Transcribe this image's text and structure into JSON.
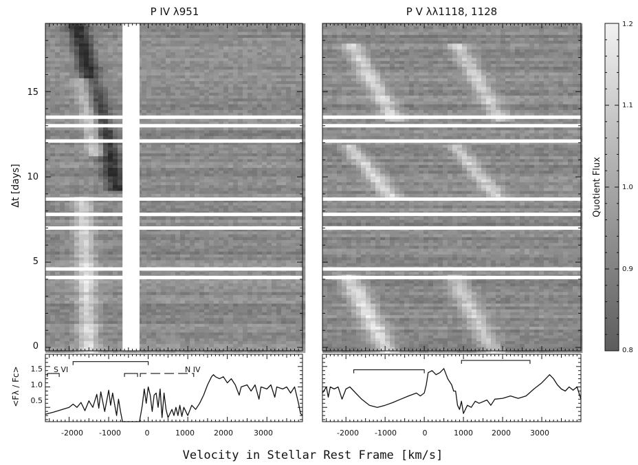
{
  "chart_data": [
    {
      "type": "heatmap",
      "title": "P IV λ951",
      "ylabel": "Δt [days]",
      "yticks": [
        "0",
        "5",
        "10",
        "15"
      ],
      "ylim": [
        -0.2,
        19
      ],
      "xlim": [
        -2600,
        3900
      ],
      "gap_band_kms": [
        -650,
        -220
      ],
      "white_rows_days": [
        4.1,
        4.6,
        7.0,
        7.8,
        8.7,
        12.1,
        13.0,
        13.5
      ],
      "features": [
        {
          "kind": "dark",
          "x0": -1800,
          "y0": 19,
          "x1": -800,
          "y1": 9.5,
          "width_kms": 260,
          "strength": 0.5
        },
        {
          "kind": "light",
          "x0": -1600,
          "y0": 15.5,
          "x1": -1300,
          "y1": 11.5,
          "width_kms": 250,
          "strength": 0.45
        },
        {
          "kind": "light",
          "x0": -1650,
          "y0": 8.5,
          "x1": -1500,
          "y1": 0,
          "width_kms": 250,
          "strength": 0.4
        }
      ]
    },
    {
      "type": "heatmap",
      "title": "P V λλ1118, 1128",
      "ylim": [
        -0.2,
        19
      ],
      "xlim": [
        -2600,
        4000
      ],
      "white_rows_days": [
        4.1,
        4.6,
        7.0,
        7.8,
        8.7,
        12.1,
        13.0,
        13.5
      ],
      "features": [
        {
          "kind": "light",
          "x0": -1800,
          "y0": 17.5,
          "x1": -800,
          "y1": 13.5,
          "width_kms": 250,
          "strength": 0.4
        },
        {
          "kind": "light",
          "x0": 900,
          "y0": 17.5,
          "x1": 1900,
          "y1": 13.5,
          "width_kms": 250,
          "strength": 0.35
        },
        {
          "kind": "light",
          "x0": -1800,
          "y0": 11.5,
          "x1": -900,
          "y1": 9,
          "width_kms": 250,
          "strength": 0.4
        },
        {
          "kind": "light",
          "x0": 900,
          "y0": 11.5,
          "x1": 1800,
          "y1": 9,
          "width_kms": 250,
          "strength": 0.35
        },
        {
          "kind": "light",
          "x0": -1900,
          "y0": 4,
          "x1": -1000,
          "y1": 0,
          "width_kms": 300,
          "strength": 0.45
        },
        {
          "kind": "light",
          "x0": 800,
          "y0": 4,
          "x1": 1700,
          "y1": 0,
          "width_kms": 280,
          "strength": 0.35
        }
      ]
    },
    {
      "type": "line",
      "ylabel": "<Fλ / Fc>",
      "yticks": [
        "0.5",
        "1.0",
        "1.5"
      ],
      "xticks": [
        "-2000",
        "-1000",
        "0",
        "1000",
        "2000",
        "3000"
      ],
      "xlim": [
        -2600,
        3900
      ],
      "ylim": [
        0.15,
        1.8
      ],
      "gap_band_kms": [
        -650,
        -220
      ],
      "annotations": [
        {
          "text": "S VI",
          "x": -2400,
          "y": 1.55
        },
        {
          "text": "N IV",
          "x": 1050,
          "y": 1.55
        }
      ],
      "brackets": [
        {
          "x0": -2550,
          "x1": -2250,
          "y": 1.33
        },
        {
          "x0": -1900,
          "x1": 0,
          "y": 1.62
        },
        {
          "x0": -600,
          "x1": -270,
          "y": 1.33
        },
        {
          "x0": -200,
          "x1": 1150,
          "y": 1.33,
          "dashed": true
        }
      ],
      "series": [
        {
          "values": [
            [
              -2600,
              0.33
            ],
            [
              -2400,
              0.38
            ],
            [
              -2200,
              0.44
            ],
            [
              -2000,
              0.5
            ],
            [
              -1900,
              0.58
            ],
            [
              -1800,
              0.5
            ],
            [
              -1700,
              0.62
            ],
            [
              -1600,
              0.42
            ],
            [
              -1500,
              0.66
            ],
            [
              -1400,
              0.5
            ],
            [
              -1300,
              0.82
            ],
            [
              -1250,
              0.48
            ],
            [
              -1200,
              0.88
            ],
            [
              -1100,
              0.4
            ],
            [
              -1000,
              0.92
            ],
            [
              -950,
              0.55
            ],
            [
              -900,
              0.85
            ],
            [
              -800,
              0.3
            ],
            [
              -750,
              0.7
            ],
            [
              -700,
              0.4
            ],
            [
              -650,
              0.08
            ],
            [
              -220,
              0.08
            ],
            [
              -150,
              0.55
            ],
            [
              -100,
              0.95
            ],
            [
              -50,
              0.6
            ],
            [
              0,
              1.0
            ],
            [
              50,
              0.8
            ],
            [
              100,
              0.4
            ],
            [
              150,
              0.8
            ],
            [
              200,
              0.85
            ],
            [
              250,
              0.5
            ],
            [
              300,
              0.95
            ],
            [
              350,
              0.25
            ],
            [
              400,
              0.85
            ],
            [
              450,
              0.45
            ],
            [
              500,
              0.25
            ],
            [
              600,
              0.45
            ],
            [
              650,
              0.3
            ],
            [
              700,
              0.5
            ],
            [
              750,
              0.3
            ],
            [
              800,
              0.55
            ],
            [
              850,
              0.28
            ],
            [
              900,
              0.5
            ],
            [
              1000,
              0.3
            ],
            [
              1100,
              0.55
            ],
            [
              1200,
              0.45
            ],
            [
              1300,
              0.6
            ],
            [
              1400,
              0.8
            ],
            [
              1500,
              1.05
            ],
            [
              1600,
              1.25
            ],
            [
              1650,
              1.3
            ],
            [
              1700,
              1.25
            ],
            [
              1800,
              1.2
            ],
            [
              1900,
              1.25
            ],
            [
              2000,
              1.1
            ],
            [
              2100,
              1.2
            ],
            [
              2200,
              1.05
            ],
            [
              2300,
              0.8
            ],
            [
              2350,
              1.0
            ],
            [
              2500,
              1.05
            ],
            [
              2600,
              0.9
            ],
            [
              2700,
              1.05
            ],
            [
              2800,
              0.7
            ],
            [
              2850,
              1.0
            ],
            [
              3000,
              0.95
            ],
            [
              3100,
              1.05
            ],
            [
              3200,
              0.75
            ],
            [
              3250,
              1.0
            ],
            [
              3400,
              0.95
            ],
            [
              3500,
              1.0
            ],
            [
              3600,
              0.85
            ],
            [
              3700,
              1.0
            ],
            [
              3800,
              0.6
            ],
            [
              3850,
              0.35
            ],
            [
              3900,
              0.3
            ]
          ]
        }
      ]
    },
    {
      "type": "line",
      "xticks": [
        "-2000",
        "-1000",
        "0",
        "1000",
        "2000",
        "3000"
      ],
      "xlim": [
        -2600,
        4000
      ],
      "ylim": [
        0.15,
        1.8
      ],
      "brackets": [
        {
          "x0": -1800,
          "x1": 0,
          "y": 1.42
        },
        {
          "x0": 950,
          "x1": 2700,
          "y": 1.65
        }
      ],
      "series": [
        {
          "values": [
            [
              -2600,
              0.85
            ],
            [
              -2500,
              1.0
            ],
            [
              -2450,
              0.75
            ],
            [
              -2400,
              1.0
            ],
            [
              -2300,
              0.95
            ],
            [
              -2200,
              1.0
            ],
            [
              -2100,
              0.7
            ],
            [
              -2000,
              0.95
            ],
            [
              -1900,
              1.0
            ],
            [
              -1800,
              0.9
            ],
            [
              -1600,
              0.7
            ],
            [
              -1400,
              0.55
            ],
            [
              -1200,
              0.5
            ],
            [
              -1000,
              0.55
            ],
            [
              -800,
              0.62
            ],
            [
              -600,
              0.7
            ],
            [
              -400,
              0.78
            ],
            [
              -200,
              0.85
            ],
            [
              -100,
              0.78
            ],
            [
              0,
              0.85
            ],
            [
              50,
              1.05
            ],
            [
              100,
              1.35
            ],
            [
              200,
              1.4
            ],
            [
              300,
              1.3
            ],
            [
              400,
              1.35
            ],
            [
              500,
              1.45
            ],
            [
              600,
              1.2
            ],
            [
              700,
              1.05
            ],
            [
              750,
              0.9
            ],
            [
              800,
              0.9
            ],
            [
              850,
              0.55
            ],
            [
              900,
              0.45
            ],
            [
              950,
              0.65
            ],
            [
              1000,
              0.35
            ],
            [
              1100,
              0.55
            ],
            [
              1200,
              0.5
            ],
            [
              1300,
              0.65
            ],
            [
              1400,
              0.6
            ],
            [
              1600,
              0.68
            ],
            [
              1700,
              0.55
            ],
            [
              1800,
              0.7
            ],
            [
              2000,
              0.72
            ],
            [
              2200,
              0.78
            ],
            [
              2400,
              0.72
            ],
            [
              2600,
              0.78
            ],
            [
              2800,
              0.95
            ],
            [
              3000,
              1.1
            ],
            [
              3200,
              1.3
            ],
            [
              3300,
              1.2
            ],
            [
              3400,
              1.05
            ],
            [
              3500,
              0.95
            ],
            [
              3600,
              0.9
            ],
            [
              3700,
              1.0
            ],
            [
              3800,
              0.92
            ],
            [
              3900,
              1.0
            ],
            [
              4000,
              0.7
            ]
          ]
        }
      ]
    },
    {
      "type": "colorbar",
      "label": "Quotient Flux",
      "ticks": [
        "0.8",
        "0.9",
        "1.0",
        "1.1",
        "1.2"
      ]
    }
  ],
  "figure": {
    "xlabel": "Velocity in Stellar Rest Frame [km/s]"
  }
}
